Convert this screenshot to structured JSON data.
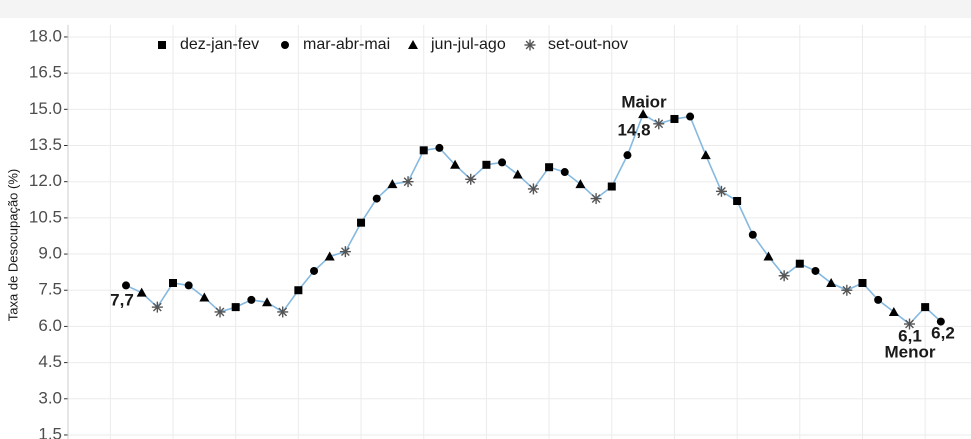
{
  "chart_data": {
    "type": "line",
    "y_label": "Taxa de Desocupação (%)",
    "ylim": [
      1.2,
      18.5
    ],
    "yticks": [
      1.5,
      {
        "value": 3,
        "label": "3.0"
      },
      4.5,
      {
        "value": 6,
        "label": "6.0"
      },
      7.5,
      {
        "value": 9,
        "label": "9.0"
      },
      10.5,
      {
        "value": 12,
        "label": "12.0"
      },
      13.5,
      {
        "value": 15,
        "label": "15.0"
      },
      16.5,
      {
        "value": 18,
        "label": "18.0"
      }
    ],
    "grid": true,
    "line_color": "#86b9e0",
    "series": [
      {
        "name": "dez-jan-fev",
        "marker": "square",
        "color": "#000000",
        "values": [
          null,
          null,
          null,
          7.8,
          null,
          null,
          null,
          6.8,
          null,
          null,
          null,
          7.5,
          null,
          null,
          null,
          10.3,
          null,
          null,
          null,
          13.3,
          null,
          null,
          null,
          12.7,
          null,
          null,
          null,
          12.6,
          null,
          null,
          null,
          11.8,
          null,
          null,
          null,
          14.6,
          null,
          null,
          null,
          11.2,
          null,
          null,
          null,
          8.6,
          null,
          null,
          null,
          7.8,
          null,
          null,
          null,
          6.8,
          null
        ]
      },
      {
        "name": "mar-abr-mai",
        "marker": "circle",
        "color": "#000000",
        "values": [
          7.7,
          null,
          null,
          null,
          7.7,
          null,
          null,
          null,
          7.1,
          null,
          null,
          null,
          8.3,
          null,
          null,
          null,
          11.3,
          null,
          null,
          null,
          13.4,
          null,
          null,
          null,
          12.8,
          null,
          null,
          null,
          12.4,
          null,
          null,
          null,
          13.1,
          null,
          null,
          null,
          14.7,
          null,
          null,
          null,
          9.8,
          null,
          null,
          null,
          8.3,
          null,
          null,
          null,
          7.1,
          null,
          null,
          null,
          6.2
        ]
      },
      {
        "name": "jun-jul-ago",
        "marker": "triangle",
        "color": "#000000",
        "values": [
          null,
          7.4,
          null,
          null,
          null,
          7.2,
          null,
          null,
          null,
          7.0,
          null,
          null,
          null,
          8.9,
          null,
          null,
          null,
          11.9,
          null,
          null,
          null,
          12.7,
          null,
          null,
          null,
          12.3,
          null,
          null,
          null,
          11.9,
          null,
          null,
          null,
          14.8,
          null,
          null,
          null,
          13.1,
          null,
          null,
          null,
          8.9,
          null,
          null,
          null,
          7.8,
          null,
          null,
          null,
          6.6,
          null,
          null,
          null
        ]
      },
      {
        "name": "set-out-nov",
        "marker": "star",
        "color": "#555555",
        "values": [
          null,
          null,
          6.8,
          null,
          null,
          null,
          6.6,
          null,
          null,
          null,
          6.6,
          null,
          null,
          null,
          9.1,
          null,
          null,
          null,
          12.0,
          null,
          null,
          null,
          12.1,
          null,
          null,
          null,
          11.7,
          null,
          null,
          null,
          11.3,
          null,
          null,
          null,
          14.4,
          null,
          null,
          null,
          11.6,
          null,
          null,
          null,
          8.1,
          null,
          null,
          null,
          7.5,
          null,
          null,
          null,
          6.1,
          null,
          null
        ]
      }
    ],
    "annotations": [
      "7,7",
      "Maior",
      "14,8",
      "6,1",
      "6,2",
      "Menor"
    ]
  }
}
